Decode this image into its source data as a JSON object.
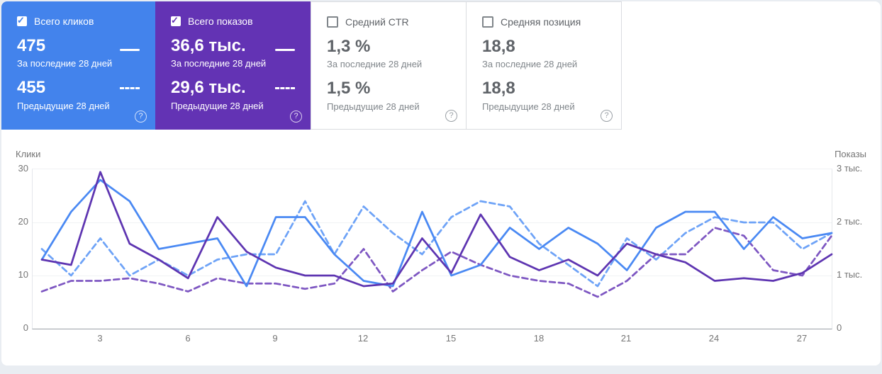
{
  "cards": [
    {
      "label": "Всего кликов",
      "checked": true,
      "bg": "#4383ec",
      "value_current": "475",
      "caption_current": "За последние 28 дней",
      "value_previous": "455",
      "caption_previous": "Предыдущие 28 дней",
      "help": "?"
    },
    {
      "label": "Всего показов",
      "checked": true,
      "bg": "#6333b4",
      "value_current": "36,6 тыс.",
      "caption_current": "За последние 28 дней",
      "value_previous": "29,6 тыс.",
      "caption_previous": "Предыдущие 28 дней",
      "help": "?"
    },
    {
      "label": "Средний CTR",
      "checked": false,
      "bg": "#ffffff",
      "value_current": "1,3 %",
      "caption_current": "За последние 28 дней",
      "value_previous": "1,5 %",
      "caption_previous": "Предыдущие 28 дней",
      "help": "?"
    },
    {
      "label": "Средняя позиция",
      "checked": false,
      "bg": "#ffffff",
      "value_current": "18,8",
      "caption_current": "За последние 28 дней",
      "value_previous": "18,8",
      "caption_previous": "Предыдущие 28 дней",
      "help": "?"
    }
  ],
  "chart_data": {
    "type": "line",
    "x": [
      1,
      2,
      3,
      4,
      5,
      6,
      7,
      8,
      9,
      10,
      11,
      12,
      13,
      14,
      15,
      16,
      17,
      18,
      19,
      20,
      21,
      22,
      23,
      24,
      25,
      26,
      27,
      28
    ],
    "x_ticks": [
      "3",
      "6",
      "9",
      "12",
      "15",
      "18",
      "21",
      "24",
      "27"
    ],
    "left_axis": {
      "label": "Клики",
      "range": [
        0,
        30
      ],
      "ticks": [
        "30",
        "20",
        "10",
        "0"
      ]
    },
    "right_axis": {
      "label": "Показы",
      "range": [
        0,
        3000
      ],
      "ticks": [
        "3 тыс.",
        "2 тыс.",
        "1 тыс.",
        "0"
      ]
    },
    "grid": "horizontal",
    "series": [
      {
        "name": "Клики — предыдущие 28 дней",
        "axis": "left",
        "style": "dashed",
        "color": "#6ea3f7",
        "values": [
          15,
          10,
          17,
          10,
          13,
          10,
          13,
          14,
          14,
          24,
          14,
          23,
          18,
          14,
          21,
          24,
          23,
          16,
          12,
          8,
          17,
          13,
          18,
          21,
          20,
          20,
          15,
          18
        ]
      },
      {
        "name": "Показы — предыдущие 28 дней",
        "axis": "right",
        "style": "dashed",
        "color": "#7e57c2",
        "values": [
          700,
          900,
          900,
          950,
          850,
          700,
          950,
          850,
          850,
          750,
          850,
          1500,
          700,
          1100,
          1450,
          1200,
          1000,
          900,
          850,
          600,
          900,
          1400,
          1400,
          1900,
          1750,
          1100,
          1000,
          1750
        ]
      },
      {
        "name": "Клики — за последние 28 дней",
        "axis": "left",
        "style": "solid",
        "color": "#4a89f3",
        "values": [
          13,
          22,
          28,
          24,
          15,
          16,
          17,
          8,
          21,
          21,
          14,
          9,
          8,
          22,
          10,
          12,
          19,
          15,
          19,
          16,
          11,
          19,
          22,
          22,
          15,
          21,
          17,
          18
        ]
      },
      {
        "name": "Показы — за последние 28 дней",
        "axis": "right",
        "style": "solid",
        "color": "#5e35b1",
        "values": [
          1300,
          1200,
          2950,
          1600,
          1300,
          950,
          2100,
          1450,
          1150,
          1000,
          1000,
          800,
          850,
          1700,
          1050,
          2150,
          1350,
          1100,
          1300,
          1000,
          1600,
          1400,
          1250,
          900,
          950,
          900,
          1050,
          1400
        ]
      }
    ]
  }
}
